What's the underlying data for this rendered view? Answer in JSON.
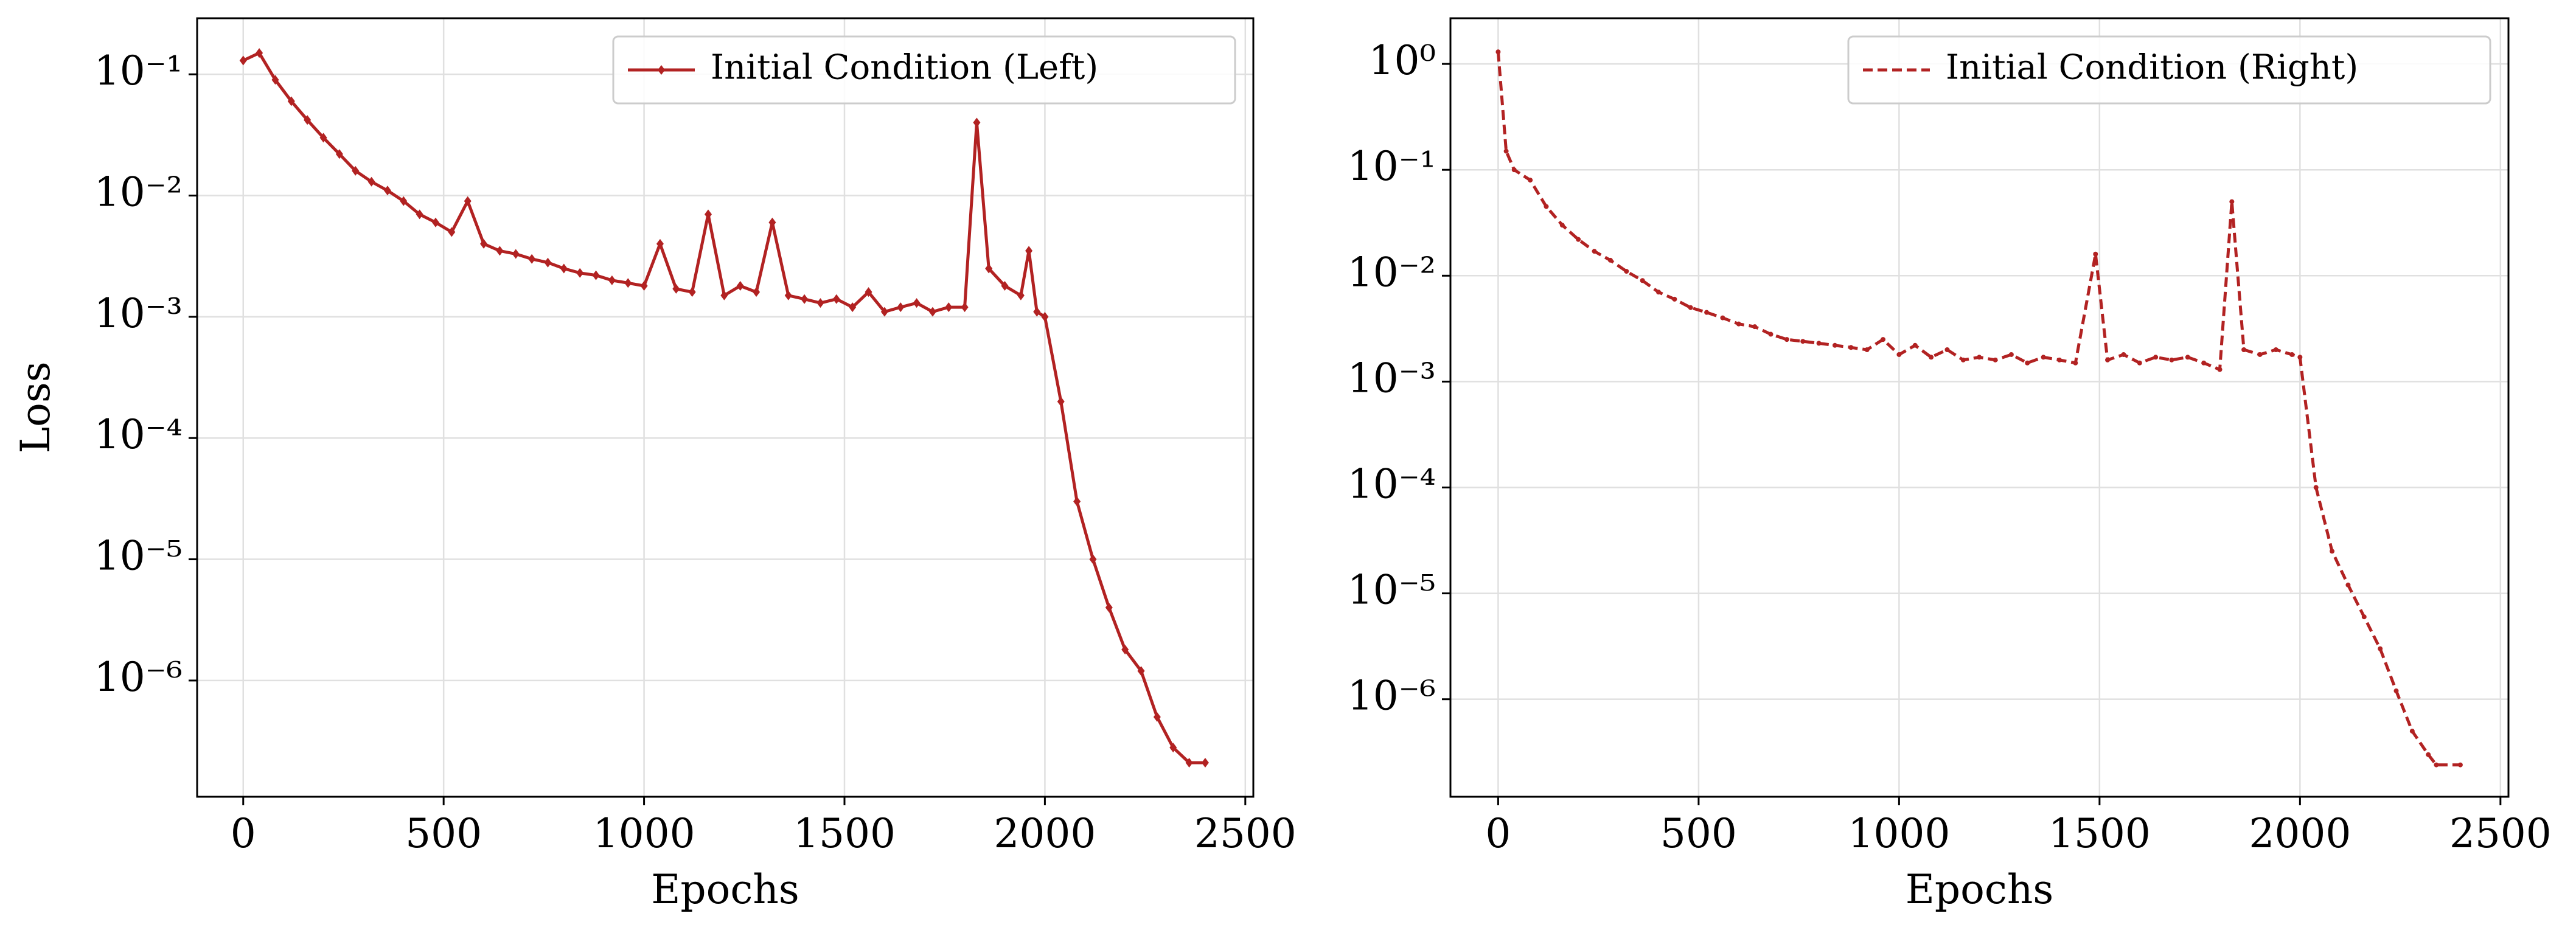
{
  "chart_data": [
    {
      "type": "line",
      "xlabel": "Epochs",
      "ylabel": "Loss",
      "ylog": true,
      "grid": true,
      "legend": "upper right",
      "xlim": [
        -115,
        2520
      ],
      "ylim": [
        1.1e-07,
        0.29
      ],
      "xticks": [
        0,
        500,
        1000,
        1500,
        2000,
        2500
      ],
      "yticks": [
        {
          "value": 0.1,
          "label": "10⁻¹"
        },
        {
          "value": 0.01,
          "label": "10⁻²"
        },
        {
          "value": 0.001,
          "label": "10⁻³"
        },
        {
          "value": 0.0001,
          "label": "10⁻⁴"
        },
        {
          "value": 1e-05,
          "label": "10⁻⁵"
        },
        {
          "value": 1e-06,
          "label": "10⁻⁶"
        }
      ],
      "x": [
        0,
        40,
        80,
        120,
        160,
        200,
        240,
        280,
        320,
        360,
        400,
        440,
        480,
        520,
        560,
        600,
        640,
        680,
        720,
        760,
        800,
        840,
        880,
        920,
        960,
        1000,
        1040,
        1080,
        1120,
        1160,
        1200,
        1240,
        1280,
        1320,
        1360,
        1400,
        1440,
        1480,
        1520,
        1560,
        1600,
        1640,
        1680,
        1720,
        1760,
        1800,
        1830,
        1860,
        1900,
        1940,
        1960,
        1980,
        2000,
        2040,
        2080,
        2120,
        2160,
        2200,
        2240,
        2280,
        2320,
        2360,
        2400
      ],
      "series": [
        {
          "name": "Initial Condition (Left)",
          "color": "#b22222",
          "linestyle": "solid",
          "marker": "D",
          "values": [
            0.13,
            0.15,
            0.09,
            0.06,
            0.042,
            0.03,
            0.022,
            0.016,
            0.013,
            0.011,
            0.009,
            0.007,
            0.006,
            0.005,
            0.009,
            0.004,
            0.0035,
            0.0033,
            0.003,
            0.0028,
            0.0025,
            0.0023,
            0.0022,
            0.002,
            0.0019,
            0.0018,
            0.004,
            0.0017,
            0.0016,
            0.007,
            0.0015,
            0.0018,
            0.0016,
            0.006,
            0.0015,
            0.0014,
            0.0013,
            0.0014,
            0.0012,
            0.0016,
            0.0011,
            0.0012,
            0.0013,
            0.0011,
            0.0012,
            0.0012,
            0.04,
            0.0025,
            0.0018,
            0.0015,
            0.0035,
            0.0011,
            0.001,
            0.0002,
            3e-05,
            1e-05,
            4e-06,
            1.8e-06,
            1.2e-06,
            5e-07,
            2.8e-07,
            2.1e-07,
            2.1e-07
          ]
        }
      ]
    },
    {
      "type": "line",
      "xlabel": "Epochs",
      "ylog": true,
      "grid": true,
      "legend": "upper right",
      "xlim": [
        -119,
        2520
      ],
      "ylim": [
        1.2e-07,
        2.7
      ],
      "xticks": [
        0,
        500,
        1000,
        1500,
        2000,
        2500
      ],
      "yticks": [
        {
          "value": 1,
          "label": "10⁰"
        },
        {
          "value": 0.1,
          "label": "10⁻¹"
        },
        {
          "value": 0.01,
          "label": "10⁻²"
        },
        {
          "value": 0.001,
          "label": "10⁻³"
        },
        {
          "value": 0.0001,
          "label": "10⁻⁴"
        },
        {
          "value": 1e-05,
          "label": "10⁻⁵"
        },
        {
          "value": 1e-06,
          "label": "10⁻⁶"
        }
      ],
      "x": [
        0,
        20,
        40,
        80,
        120,
        160,
        200,
        240,
        280,
        320,
        360,
        400,
        440,
        480,
        520,
        560,
        600,
        640,
        680,
        720,
        760,
        800,
        840,
        880,
        920,
        960,
        1000,
        1040,
        1080,
        1120,
        1160,
        1200,
        1240,
        1280,
        1320,
        1360,
        1400,
        1440,
        1490,
        1520,
        1560,
        1600,
        1640,
        1680,
        1720,
        1760,
        1800,
        1830,
        1860,
        1900,
        1940,
        1980,
        2000,
        2040,
        2080,
        2120,
        2160,
        2200,
        2240,
        2280,
        2320,
        2340,
        2400
      ],
      "series": [
        {
          "name": "Initial Condition (Right)",
          "color": "#b22222",
          "linestyle": "dashed",
          "marker": ".",
          "values": [
            1.3,
            0.15,
            0.1,
            0.08,
            0.045,
            0.03,
            0.022,
            0.017,
            0.014,
            0.011,
            0.009,
            0.007,
            0.006,
            0.005,
            0.0045,
            0.004,
            0.0035,
            0.0033,
            0.0028,
            0.0025,
            0.0024,
            0.0023,
            0.0022,
            0.0021,
            0.002,
            0.0025,
            0.0018,
            0.0022,
            0.0017,
            0.002,
            0.0016,
            0.0017,
            0.0016,
            0.0018,
            0.0015,
            0.0017,
            0.0016,
            0.0015,
            0.016,
            0.0016,
            0.0018,
            0.0015,
            0.0017,
            0.0016,
            0.0017,
            0.0015,
            0.0013,
            0.05,
            0.002,
            0.0018,
            0.002,
            0.0018,
            0.0017,
            0.0001,
            2.5e-05,
            1.2e-05,
            6e-06,
            3e-06,
            1.2e-06,
            5e-07,
            3e-07,
            2.4e-07,
            2.4e-07
          ]
        }
      ]
    }
  ]
}
